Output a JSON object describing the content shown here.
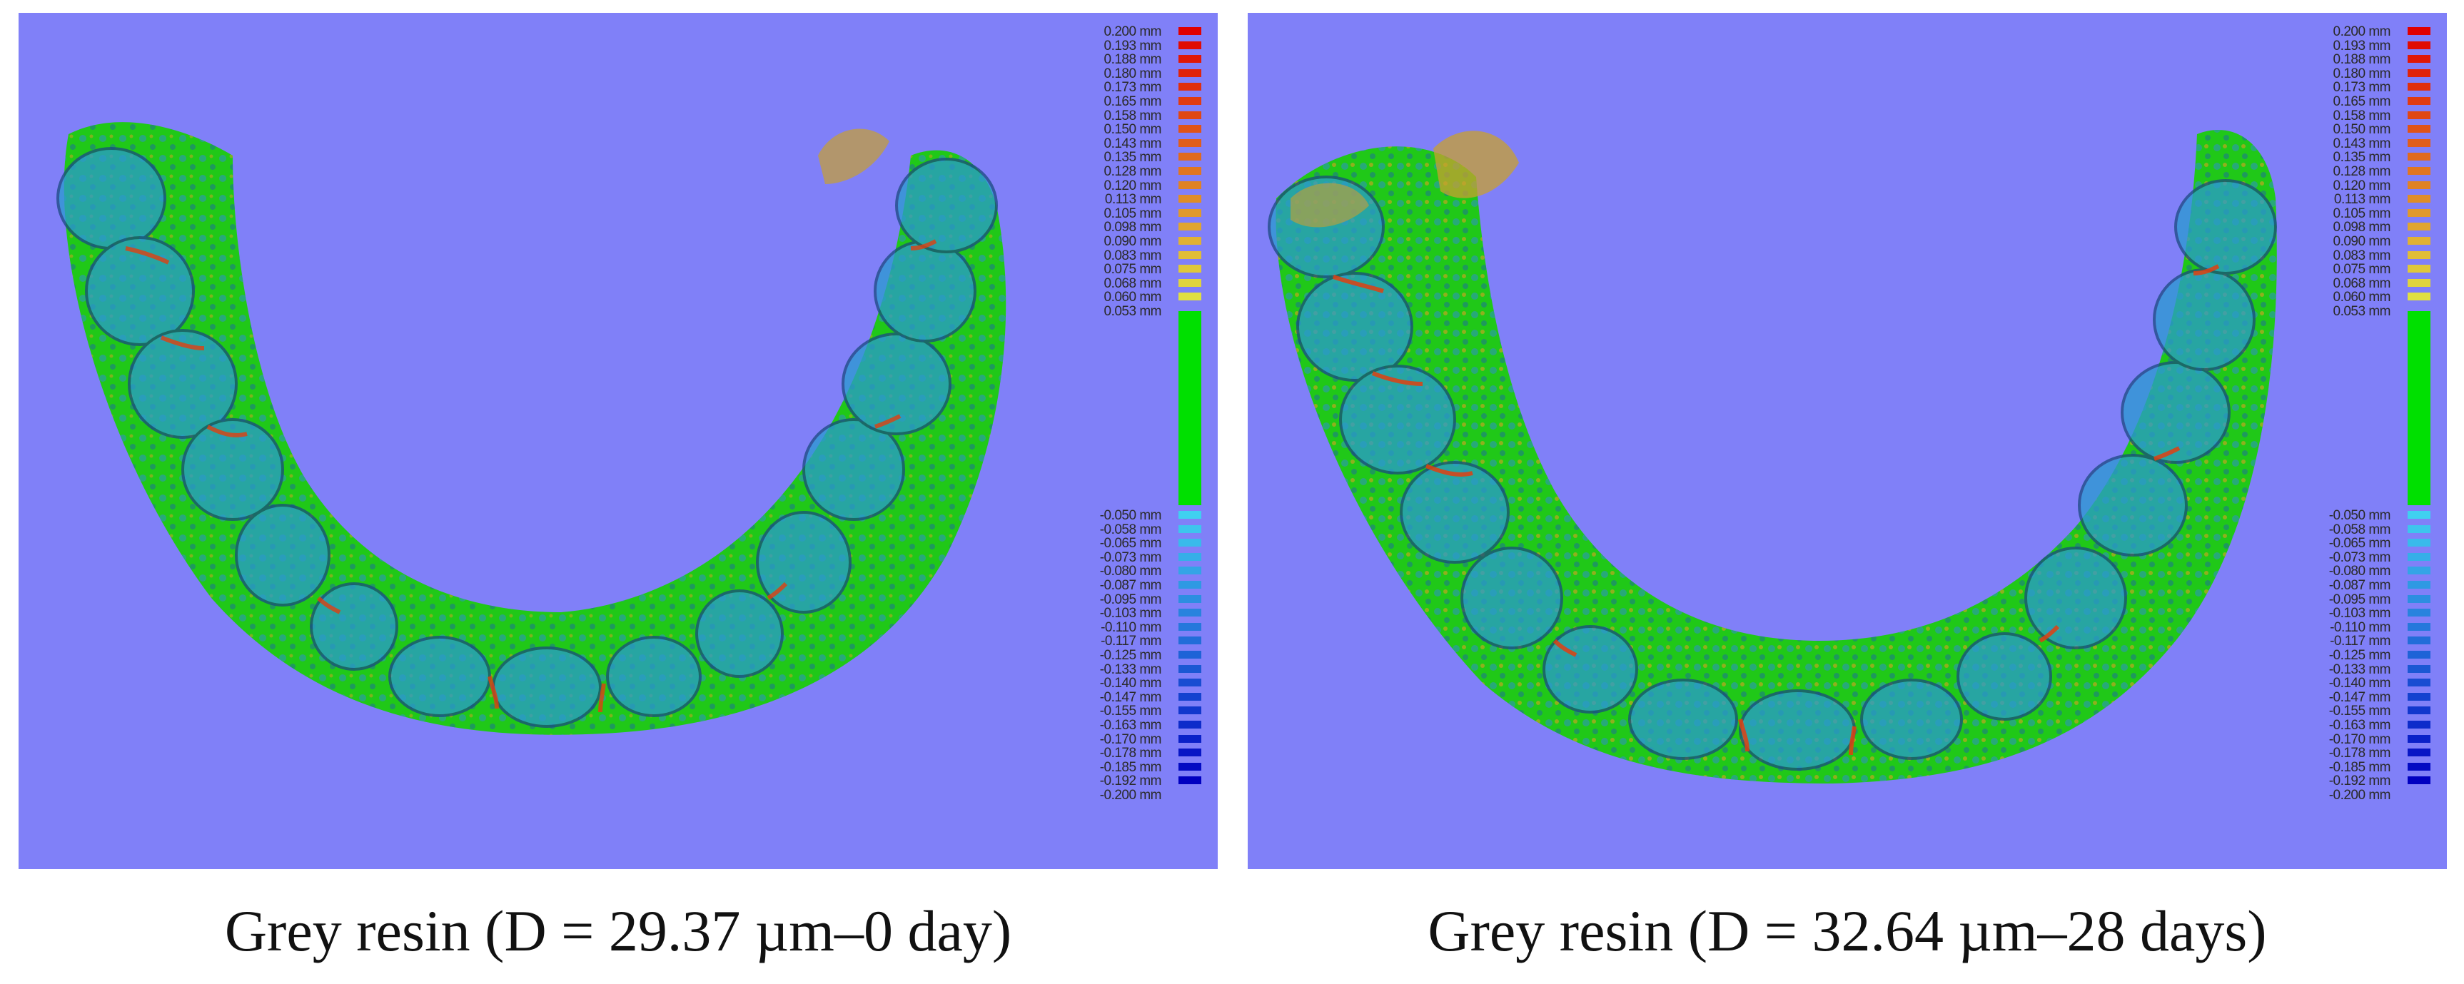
{
  "panels": [
    {
      "caption": "Grey resin (D = 29.37 µm–0 day)",
      "legend": {
        "unit": "mm",
        "upper_labels": [
          "0.200",
          "0.193",
          "0.188",
          "0.180",
          "0.173",
          "0.165",
          "0.158",
          "0.150",
          "0.143",
          "0.135",
          "0.128",
          "0.120",
          "0.113",
          "0.105",
          "0.098",
          "0.090",
          "0.083",
          "0.075",
          "0.068",
          "0.060",
          "0.053"
        ],
        "lower_labels": [
          "-0.050",
          "-0.058",
          "-0.065",
          "-0.073",
          "-0.080",
          "-0.087",
          "-0.095",
          "-0.103",
          "-0.110",
          "-0.117",
          "-0.125",
          "-0.133",
          "-0.140",
          "-0.147",
          "-0.155",
          "-0.163",
          "-0.170",
          "-0.178",
          "-0.185",
          "-0.192",
          "-0.200"
        ]
      }
    },
    {
      "caption": "Grey resin (D = 32.64 µm–28 days)",
      "legend": {
        "unit": "mm",
        "upper_labels": [
          "0.200",
          "0.193",
          "0.188",
          "0.180",
          "0.173",
          "0.165",
          "0.158",
          "0.150",
          "0.143",
          "0.135",
          "0.128",
          "0.120",
          "0.113",
          "0.105",
          "0.098",
          "0.090",
          "0.083",
          "0.075",
          "0.068",
          "0.060",
          "0.053"
        ],
        "lower_labels": [
          "-0.050",
          "-0.058",
          "-0.065",
          "-0.073",
          "-0.080",
          "-0.087",
          "-0.095",
          "-0.103",
          "-0.110",
          "-0.117",
          "-0.125",
          "-0.133",
          "-0.140",
          "-0.147",
          "-0.155",
          "-0.163",
          "-0.170",
          "-0.178",
          "-0.185",
          "-0.192",
          "-0.200"
        ]
      }
    }
  ],
  "colors": {
    "background": "#8080f8",
    "neutral": "#00e000",
    "positive_high": "#e00000",
    "positive_low": "#e0e040",
    "negative_low": "#40d0f0",
    "negative_high": "#0000c0"
  }
}
